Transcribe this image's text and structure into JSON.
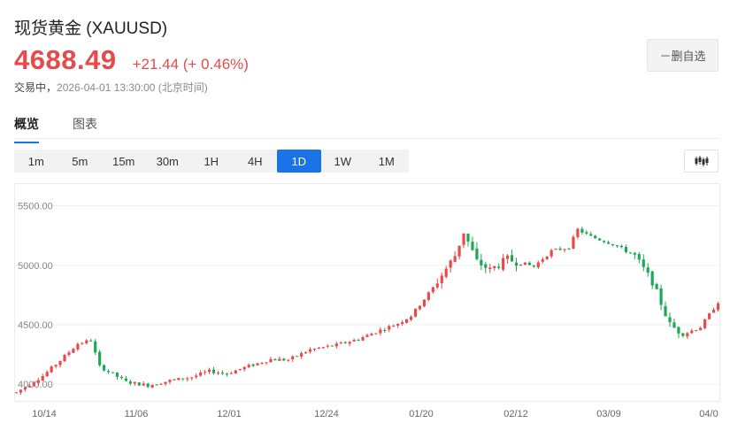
{
  "header": {
    "title": "现货黄金  (XAUUSD)",
    "price": "4688.49",
    "change": "+21.44 (+ 0.46%)",
    "trade_label": "交易中，",
    "timestamp": "2026-04-01 13:30:00  (北京时间)",
    "watchlist_button": "－删自选"
  },
  "tabs": [
    {
      "label": "概览",
      "active": true
    },
    {
      "label": "图表",
      "active": false
    }
  ],
  "intervals": [
    {
      "label": "1m"
    },
    {
      "label": "5m"
    },
    {
      "label": "15m"
    },
    {
      "label": "30m"
    },
    {
      "label": "1H"
    },
    {
      "label": "4H"
    },
    {
      "label": "1D",
      "active": true
    },
    {
      "label": "1W"
    },
    {
      "label": "1M"
    }
  ],
  "chart_type_icon": "candlestick-icon",
  "colors": {
    "up": "#e84a4a",
    "down": "#1aaa55",
    "accent": "#1a73e8"
  },
  "chart_data": {
    "type": "candlestick",
    "y_ticks": [
      "5500.00",
      "5000.00",
      "4500.00",
      "4000.00"
    ],
    "x_ticks": [
      "10/14",
      "11/06",
      "12/01",
      "12/24",
      "01/20",
      "02/12",
      "03/09",
      "04/0"
    ],
    "ylim": [
      3860,
      5690
    ],
    "grid": true,
    "knots": [
      [
        0,
        3930
      ],
      [
        6,
        4070
      ],
      [
        10,
        4200
      ],
      [
        14,
        4340
      ],
      [
        17,
        4370
      ],
      [
        19,
        4150
      ],
      [
        25,
        4020
      ],
      [
        30,
        3990
      ],
      [
        35,
        4030
      ],
      [
        40,
        4060
      ],
      [
        44,
        4110
      ],
      [
        48,
        4090
      ],
      [
        52,
        4140
      ],
      [
        58,
        4210
      ],
      [
        62,
        4205
      ],
      [
        67,
        4290
      ],
      [
        73,
        4330
      ],
      [
        78,
        4380
      ],
      [
        82,
        4440
      ],
      [
        87,
        4510
      ],
      [
        90,
        4575
      ],
      [
        95,
        4810
      ],
      [
        100,
        5080
      ],
      [
        102,
        5280
      ],
      [
        105,
        5030
      ],
      [
        108,
        4960
      ],
      [
        112,
        5050
      ],
      [
        118,
        4990
      ],
      [
        122,
        5120
      ],
      [
        126,
        5150
      ],
      [
        128,
        5300
      ],
      [
        131,
        5240
      ],
      [
        136,
        5180
      ],
      [
        141,
        5080
      ],
      [
        145,
        4860
      ],
      [
        149,
        4500
      ],
      [
        152,
        4420
      ],
      [
        156,
        4480
      ],
      [
        160,
        4690
      ]
    ]
  }
}
